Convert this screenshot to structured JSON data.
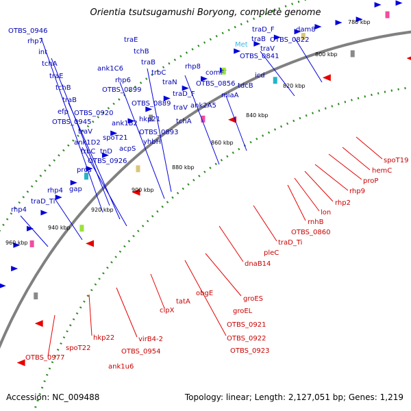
{
  "title": "Orientia tsutsugamushi Boryong, complete genome",
  "footer": {
    "accession": "Accession: NC_009488",
    "summary": "Topology: linear; Length: 2,127,051 bp; Genes: 1,219"
  },
  "colors": {
    "forward_gene": "#0000dc",
    "reverse_gene": "#e60000",
    "label_top": "#0000b4",
    "label_bottom": "#c80000",
    "label_rna": "#39b6e6",
    "backbone": "#808080",
    "dotted_ring": "#2e8b22"
  },
  "ticks": [
    "780 kbp",
    "800 kbp",
    "820 kbp",
    "840 kbp",
    "860 kbp",
    "880 kbp",
    "900 kbp",
    "920 kbp",
    "940 kbp",
    "960 kbp"
  ],
  "top_labels": [
    {
      "text": "OTBS_0946"
    },
    {
      "text": "rhp7"
    },
    {
      "text": "int"
    },
    {
      "text": "tchA"
    },
    {
      "text": "traE"
    },
    {
      "text": "tchB"
    },
    {
      "text": "traB"
    },
    {
      "text": "efp"
    },
    {
      "text": "OTBS_0945"
    },
    {
      "text": "traV"
    },
    {
      "text": "ank1D2"
    },
    {
      "text": "trbC"
    },
    {
      "text": "tnD"
    },
    {
      "text": "pros"
    },
    {
      "text": "OTBS_0926"
    },
    {
      "text": "spoT21"
    },
    {
      "text": "acpS"
    },
    {
      "text": "ank1B2"
    },
    {
      "text": "OTBS_0920"
    },
    {
      "text": "ank1C6"
    },
    {
      "text": "rhp6"
    },
    {
      "text": "OTBS_0899"
    },
    {
      "text": "traE"
    },
    {
      "text": "tchB"
    },
    {
      "text": "traB"
    },
    {
      "text": "trbC"
    },
    {
      "text": "traN"
    },
    {
      "text": "OTBS_0889"
    },
    {
      "text": "hkp21"
    },
    {
      "text": "OTBS_0893"
    },
    {
      "text": "yhbH"
    },
    {
      "text": "traD_F"
    },
    {
      "text": "traV"
    },
    {
      "text": "tchA"
    },
    {
      "text": "rhp8"
    },
    {
      "text": "comF"
    },
    {
      "text": "OTBS_0856"
    },
    {
      "text": "ank2A5"
    },
    {
      "text": "miaA"
    },
    {
      "text": "tdcB"
    },
    {
      "text": "icd"
    },
    {
      "text": "OTBS_0841"
    },
    {
      "text": "traD_F"
    },
    {
      "text": "traB"
    },
    {
      "text": "traV"
    },
    {
      "text": "dam8"
    },
    {
      "text": "OTBS_0822"
    },
    {
      "text": "rhp4"
    },
    {
      "text": "traD_Ti"
    },
    {
      "text": "gap"
    },
    {
      "text": "rhp4"
    }
  ],
  "rna_labels": [
    {
      "text": "Met"
    }
  ],
  "bottom_labels": [
    {
      "text": "spoT19"
    },
    {
      "text": "hemC"
    },
    {
      "text": "proP"
    },
    {
      "text": "rhp9"
    },
    {
      "text": "rhp2"
    },
    {
      "text": "lon"
    },
    {
      "text": "rnhB"
    },
    {
      "text": "OTBS_0860"
    },
    {
      "text": "traD_Ti"
    },
    {
      "text": "pleC"
    },
    {
      "text": "dnaB14"
    },
    {
      "text": "groES"
    },
    {
      "text": "groEL"
    },
    {
      "text": "OTBS_0921"
    },
    {
      "text": "OTBS_0922"
    },
    {
      "text": "OTBS_0923"
    },
    {
      "text": "obgE"
    },
    {
      "text": "tatA"
    },
    {
      "text": "clpX"
    },
    {
      "text": "virB4-2"
    },
    {
      "text": "OTBS_0954"
    },
    {
      "text": "ank1u6"
    },
    {
      "text": "hkp22"
    },
    {
      "text": "spoT22"
    },
    {
      "text": "OTBS_0977"
    }
  ]
}
